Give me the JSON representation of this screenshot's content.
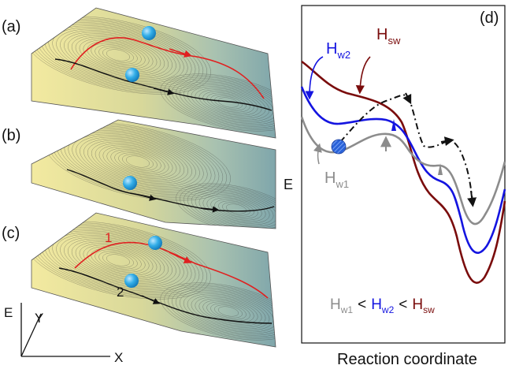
{
  "panels": {
    "a": "(a)",
    "b": "(b)",
    "c": "(c)",
    "d": "(d)"
  },
  "path_labels": {
    "path1": "1",
    "path2": "2"
  },
  "axes_3d": {
    "e": "E",
    "y": "Y",
    "x": "X"
  },
  "energy_panel": {
    "ylabel": "E",
    "xlabel": "Reaction coordinate",
    "curve_labels": {
      "sw_main": "H",
      "sw_sub": "sw",
      "w2_main": "H",
      "w2_sub": "w2",
      "w1_main": "H",
      "w1_sub": "w1"
    },
    "inequality": {
      "t1": "H",
      "s1": "w1",
      "op1": "<",
      "t2": "H",
      "s2": "w2",
      "op2": "<",
      "t3": "H",
      "s3": "sw"
    }
  },
  "colors": {
    "h_sw": "#7a0c0c",
    "h_w2": "#1414e0",
    "h_w1": "#8c8c8c",
    "path_red": "#e02020",
    "ball": "#2aa6e8",
    "surface_warm": "#efe59a",
    "surface_cool": "#86aeb0"
  }
}
